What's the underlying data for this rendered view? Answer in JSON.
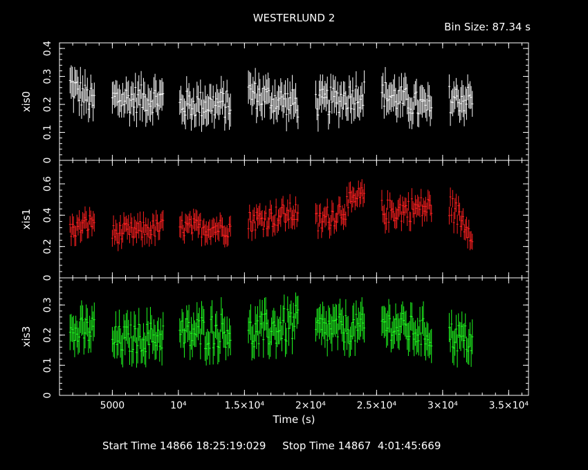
{
  "header": {
    "title": "WESTERLUND 2",
    "bin_size": "Bin Size: 87.34 s"
  },
  "footer": {
    "start_stop": "Start Time 14866 18:25:19:029     Stop Time 14867  4:01:45:669"
  },
  "colors": {
    "xis0": "#ffffff",
    "xis1": "#ff2020",
    "xis3": "#20ff20",
    "axes": "#ffffff",
    "background": "#000000"
  },
  "chart_data": {
    "type": "scatter",
    "title": "WESTERLUND 2",
    "xlabel": "Time (s)",
    "xlim": [
      1000,
      36500
    ],
    "x_ticks": [
      {
        "value": 5000,
        "label": "5000"
      },
      {
        "value": 10000,
        "label": "10⁴"
      },
      {
        "value": 15000,
        "label": "1.5×10⁴"
      },
      {
        "value": 20000,
        "label": "2×10⁴"
      },
      {
        "value": 25000,
        "label": "2.5×10⁴"
      },
      {
        "value": 30000,
        "label": "3×10⁴"
      },
      {
        "value": 35000,
        "label": "3.5×10⁴"
      }
    ],
    "bin_size_s": 87.34,
    "panels": [
      {
        "name": "xis0",
        "ylabel": "xis0",
        "ylim": [
          0,
          0.42
        ],
        "y_ticks": [
          0,
          0.1,
          0.2,
          0.3,
          0.4
        ],
        "y_tick_labels": [
          "0",
          "0.1",
          "0.2",
          "0.3",
          "0.4"
        ],
        "segments": [
          {
            "x_start": 1800,
            "x_end": 3650,
            "level_start": 0.27,
            "level_end": 0.2,
            "spread": 0.05,
            "err": 0.05
          },
          {
            "x_start": 5000,
            "x_end": 8900,
            "level_start": 0.22,
            "level_end": 0.22,
            "spread": 0.05,
            "err": 0.05
          },
          {
            "x_start": 10100,
            "x_end": 14000,
            "level_start": 0.2,
            "level_end": 0.2,
            "spread": 0.05,
            "err": 0.05
          },
          {
            "x_start": 15300,
            "x_end": 19100,
            "level_start": 0.24,
            "level_end": 0.2,
            "spread": 0.05,
            "err": 0.05
          },
          {
            "x_start": 20400,
            "x_end": 24100,
            "level_start": 0.2,
            "level_end": 0.24,
            "spread": 0.05,
            "err": 0.05
          },
          {
            "x_start": 25400,
            "x_end": 29200,
            "level_start": 0.24,
            "level_end": 0.18,
            "spread": 0.05,
            "err": 0.05
          },
          {
            "x_start": 30500,
            "x_end": 32300,
            "level_start": 0.22,
            "level_end": 0.22,
            "spread": 0.05,
            "err": 0.05
          }
        ]
      },
      {
        "name": "xis1",
        "ylabel": "xis1",
        "ylim": [
          0,
          0.75
        ],
        "y_ticks": [
          0,
          0.2,
          0.4,
          0.6
        ],
        "y_tick_labels": [
          "0",
          "0.2",
          "0.4",
          "0.6"
        ],
        "segments": [
          {
            "x_start": 1800,
            "x_end": 3650,
            "level_start": 0.3,
            "level_end": 0.36,
            "spread": 0.06,
            "err": 0.06
          },
          {
            "x_start": 5000,
            "x_end": 8900,
            "level_start": 0.28,
            "level_end": 0.32,
            "spread": 0.06,
            "err": 0.06
          },
          {
            "x_start": 10100,
            "x_end": 14000,
            "level_start": 0.32,
            "level_end": 0.32,
            "spread": 0.06,
            "err": 0.06
          },
          {
            "x_start": 15300,
            "x_end": 19100,
            "level_start": 0.36,
            "level_end": 0.42,
            "spread": 0.07,
            "err": 0.06
          },
          {
            "x_start": 20400,
            "x_end": 24100,
            "level_start": 0.34,
            "level_end": 0.52,
            "spread": 0.08,
            "err": 0.06
          },
          {
            "x_start": 25400,
            "x_end": 29200,
            "level_start": 0.42,
            "level_end": 0.45,
            "spread": 0.08,
            "err": 0.06
          },
          {
            "x_start": 30500,
            "x_end": 32300,
            "level_start": 0.46,
            "level_end": 0.3,
            "spread": 0.08,
            "err": 0.06
          }
        ]
      },
      {
        "name": "xis3",
        "ylabel": "xis3",
        "ylim": [
          0,
          0.39
        ],
        "y_ticks": [
          0,
          0.1,
          0.2,
          0.3
        ],
        "y_tick_labels": [
          "0",
          "0.1",
          "0.2",
          "0.3"
        ],
        "segments": [
          {
            "x_start": 1800,
            "x_end": 3650,
            "level_start": 0.2,
            "level_end": 0.22,
            "spread": 0.05,
            "err": 0.05
          },
          {
            "x_start": 5000,
            "x_end": 8900,
            "level_start": 0.18,
            "level_end": 0.2,
            "spread": 0.05,
            "err": 0.05
          },
          {
            "x_start": 10100,
            "x_end": 14000,
            "level_start": 0.2,
            "level_end": 0.22,
            "spread": 0.06,
            "err": 0.05
          },
          {
            "x_start": 15300,
            "x_end": 19100,
            "level_start": 0.2,
            "level_end": 0.24,
            "spread": 0.06,
            "err": 0.05
          },
          {
            "x_start": 20400,
            "x_end": 24100,
            "level_start": 0.22,
            "level_end": 0.22,
            "spread": 0.05,
            "err": 0.05
          },
          {
            "x_start": 25400,
            "x_end": 29200,
            "level_start": 0.24,
            "level_end": 0.2,
            "spread": 0.05,
            "err": 0.05
          },
          {
            "x_start": 30500,
            "x_end": 32300,
            "level_start": 0.2,
            "level_end": 0.18,
            "spread": 0.05,
            "err": 0.05
          }
        ]
      }
    ]
  }
}
